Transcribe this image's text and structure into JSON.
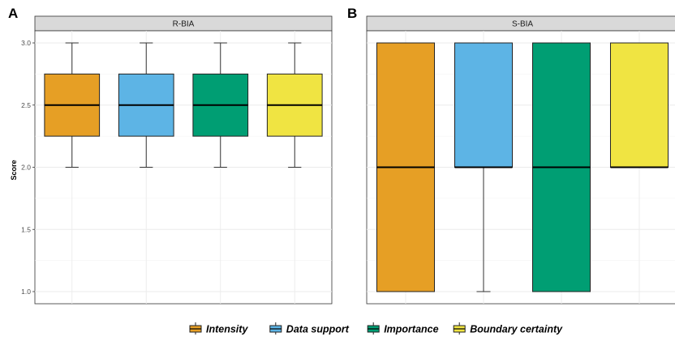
{
  "chart_data": [
    {
      "type": "box",
      "panel_label": "A",
      "strip_title": "R-BIA",
      "ylabel": "Score",
      "ylim": [
        0.9,
        3.05
      ],
      "yticks": [
        "1.0",
        "1.5",
        "2.0",
        "2.5",
        "3.0"
      ],
      "ytick_values": [
        1.0,
        1.5,
        2.0,
        2.5,
        3.0
      ],
      "grid": true,
      "categories": [
        "Intensity",
        "Data support",
        "Importance",
        "Boundary certainty"
      ],
      "boxes": [
        {
          "category": "Intensity",
          "min": 2.0,
          "q1": 2.25,
          "median": 2.5,
          "q3": 2.75,
          "max": 3.0
        },
        {
          "category": "Data support",
          "min": 2.0,
          "q1": 2.25,
          "median": 2.5,
          "q3": 2.75,
          "max": 3.0
        },
        {
          "category": "Importance",
          "min": 2.0,
          "q1": 2.25,
          "median": 2.5,
          "q3": 2.75,
          "max": 3.0
        },
        {
          "category": "Boundary certainty",
          "min": 2.0,
          "q1": 2.25,
          "median": 2.5,
          "q3": 2.75,
          "max": 3.0
        }
      ]
    },
    {
      "type": "box",
      "panel_label": "B",
      "strip_title": "S-BIA",
      "ylim": [
        0.9,
        3.05
      ],
      "grid": true,
      "categories": [
        "Intensity",
        "Data support",
        "Importance",
        "Boundary certainty"
      ],
      "boxes": [
        {
          "category": "Intensity",
          "min": 1.0,
          "q1": 1.0,
          "median": 2.0,
          "q3": 3.0,
          "max": 3.0
        },
        {
          "category": "Data support",
          "min": 1.0,
          "q1": 2.0,
          "median": 2.0,
          "q3": 3.0,
          "max": 3.0
        },
        {
          "category": "Importance",
          "min": 1.0,
          "q1": 1.0,
          "median": 2.0,
          "q3": 3.0,
          "max": 3.0
        },
        {
          "category": "Boundary certainty",
          "min": 2.0,
          "q1": 2.0,
          "median": 2.0,
          "q3": 3.0,
          "max": 3.0
        }
      ]
    }
  ],
  "legend": {
    "placement": "bottom",
    "items": [
      {
        "label": "Intensity",
        "color": "#E69F25"
      },
      {
        "label": "Data support",
        "color": "#5DB4E5"
      },
      {
        "label": "Importance",
        "color": "#009E73"
      },
      {
        "label": "Boundary certainty",
        "color": "#F0E442"
      }
    ]
  },
  "colors": {
    "strip_bg": "#D9D9D9",
    "grid": "#EBEBEB",
    "outline": "#333333"
  }
}
